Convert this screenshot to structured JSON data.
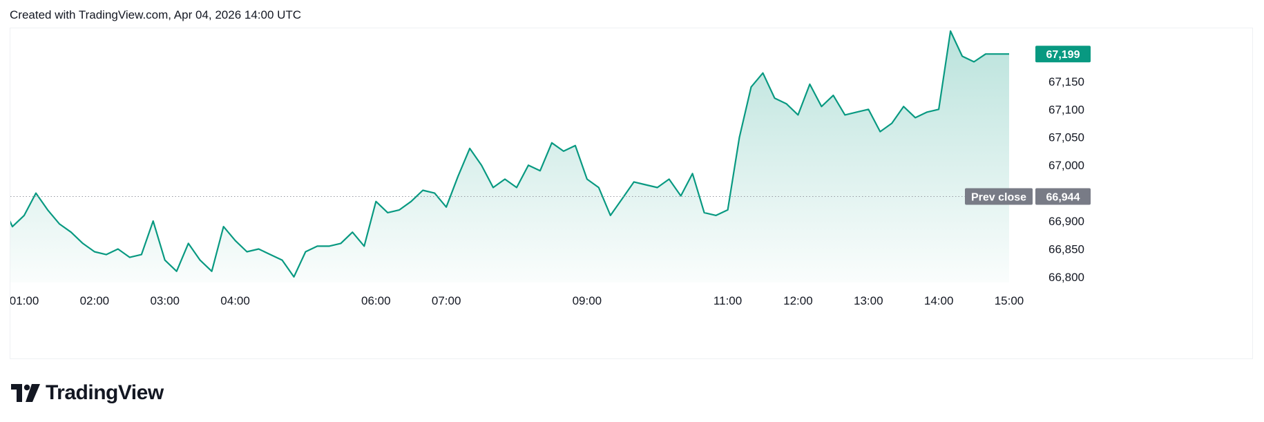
{
  "header": {
    "text": "Created with TradingView.com, Apr 04, 2026 14:00 UTC"
  },
  "brand": {
    "name": "TradingView",
    "logo_icon": "tradingview-logo-icon"
  },
  "colors": {
    "line": "#089981",
    "fill": "#089981",
    "prev_close_badge": "#787b86",
    "last_price_badge": "#089981"
  },
  "chart_data": {
    "type": "area",
    "x_ticks": [
      "01:00",
      "02:00",
      "03:00",
      "04:00",
      "06:00",
      "07:00",
      "09:00",
      "11:00",
      "12:00",
      "13:00",
      "14:00",
      "15:00"
    ],
    "y_ticks": [
      "67,150",
      "67,100",
      "67,050",
      "67,000",
      "66,900",
      "66,850",
      "66,800"
    ],
    "ylim": [
      66790,
      67245
    ],
    "prev_close": {
      "label": "Prev close",
      "value": 66944,
      "value_label": "66,944"
    },
    "last_price": {
      "value": 67199,
      "value_label": "67,199"
    },
    "series": [
      {
        "x": [
          "00:40",
          "00:50",
          "01:00",
          "01:10",
          "01:20",
          "01:30",
          "01:40",
          "01:50",
          "02:00",
          "02:10",
          "02:20",
          "02:30",
          "02:40",
          "02:50",
          "03:00",
          "03:10",
          "03:20",
          "03:30",
          "03:40",
          "03:50",
          "04:00",
          "04:10",
          "04:20",
          "04:30",
          "04:40",
          "04:50",
          "05:00",
          "05:10",
          "05:20",
          "05:30",
          "05:40",
          "05:50",
          "06:00",
          "06:10",
          "06:20",
          "06:30",
          "06:40",
          "06:50",
          "07:00",
          "07:10",
          "07:20",
          "07:30",
          "07:40",
          "07:50",
          "08:00",
          "08:10",
          "08:20",
          "08:30",
          "08:40",
          "08:50",
          "09:00",
          "09:10",
          "09:20",
          "09:30",
          "09:40",
          "09:50",
          "10:00",
          "10:10",
          "10:20",
          "10:30",
          "10:40",
          "10:50",
          "11:00",
          "11:10",
          "11:20",
          "11:30",
          "11:40",
          "11:50",
          "12:00",
          "12:10",
          "12:20",
          "12:30",
          "12:40",
          "12:50",
          "13:00",
          "13:10",
          "13:20",
          "13:30",
          "13:40",
          "13:50",
          "14:00",
          "14:10",
          "14:20",
          "14:30",
          "14:40",
          "14:50",
          "15:00"
        ],
        "values": [
          66935,
          66890,
          66910,
          66950,
          66920,
          66895,
          66880,
          66860,
          66845,
          66840,
          66850,
          66835,
          66840,
          66900,
          66830,
          66810,
          66860,
          66830,
          66810,
          66890,
          66865,
          66845,
          66850,
          66840,
          66830,
          66800,
          66845,
          66855,
          66855,
          66860,
          66880,
          66855,
          66935,
          66915,
          66920,
          66935,
          66955,
          66950,
          66925,
          66980,
          67030,
          67000,
          66960,
          66975,
          66960,
          67000,
          66990,
          67040,
          67025,
          67035,
          66975,
          66960,
          66910,
          66940,
          66970,
          66965,
          66960,
          66975,
          66945,
          66985,
          66915,
          66910,
          66920,
          67050,
          67140,
          67165,
          67120,
          67110,
          67090,
          67145,
          67105,
          67125,
          67090,
          67095,
          67100,
          67060,
          67075,
          67105,
          67085,
          67095,
          67100,
          67240,
          67195,
          67185,
          67199,
          67199,
          67199
        ]
      }
    ]
  }
}
